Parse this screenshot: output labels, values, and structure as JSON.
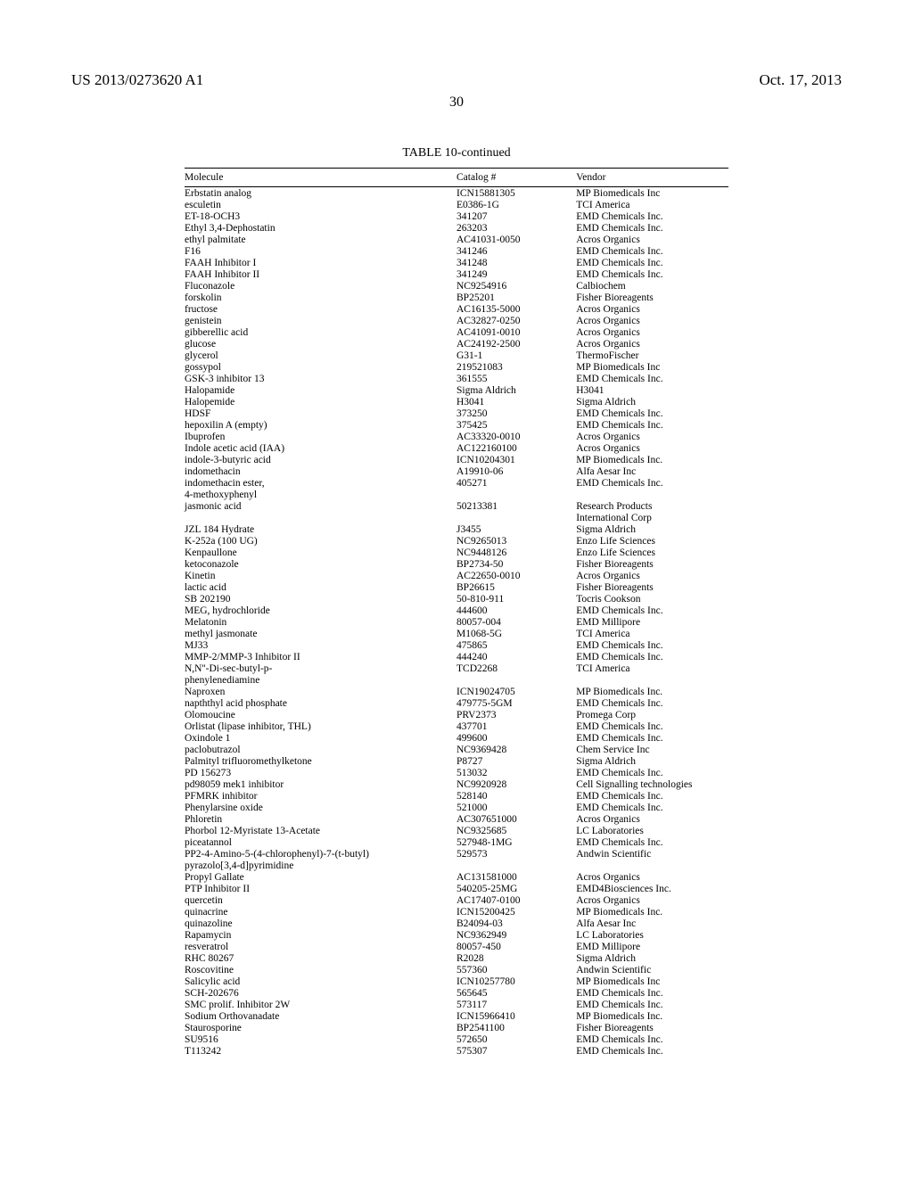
{
  "header": {
    "pub_number": "US 2013/0273620 A1",
    "pub_date": "Oct. 17, 2013"
  },
  "page_number": "30",
  "table": {
    "title": "TABLE 10-continued",
    "columns": [
      "Molecule",
      "Catalog #",
      "Vendor"
    ],
    "rows": [
      [
        "Erbstatin analog",
        "ICN15881305",
        "MP Biomedicals Inc"
      ],
      [
        "esculetin",
        "E0386-1G",
        "TCI America"
      ],
      [
        "ET-18-OCH3",
        "341207",
        "EMD Chemicals Inc."
      ],
      [
        "Ethyl 3,4-Dephostatin",
        "263203",
        "EMD Chemicals Inc."
      ],
      [
        "ethyl palmitate",
        "AC41031-0050",
        "Acros Organics"
      ],
      [
        "F16",
        "341246",
        "EMD Chemicals Inc."
      ],
      [
        "FAAH Inhibitor I",
        "341248",
        "EMD Chemicals Inc."
      ],
      [
        "FAAH Inhibitor II",
        "341249",
        "EMD Chemicals Inc."
      ],
      [
        "Fluconazole",
        "NC9254916",
        "Calbiochem"
      ],
      [
        "forskolin",
        "BP25201",
        "Fisher Bioreagents"
      ],
      [
        "fructose",
        "AC16135-5000",
        "Acros Organics"
      ],
      [
        "genistein",
        "AC32827-0250",
        "Acros Organics"
      ],
      [
        "gibberellic acid",
        "AC41091-0010",
        "Acros Organics"
      ],
      [
        "glucose",
        "AC24192-2500",
        "Acros Organics"
      ],
      [
        "glycerol",
        "G31-1",
        "ThermoFischer"
      ],
      [
        "gossypol",
        "219521083",
        "MP Biomedicals Inc"
      ],
      [
        "GSK-3 inhibitor 13",
        "361555",
        "EMD Chemicals Inc."
      ],
      [
        "Halopamide",
        "Sigma Aldrich",
        "H3041"
      ],
      [
        "Halopemide",
        "H3041",
        "Sigma Aldrich"
      ],
      [
        "HDSF",
        "373250",
        "EMD Chemicals Inc."
      ],
      [
        "hepoxilin A (empty)",
        "375425",
        "EMD Chemicals Inc."
      ],
      [
        "Ibuprofen",
        "AC33320-0010",
        "Acros Organics"
      ],
      [
        "Indole acetic acid (IAA)",
        "AC122160100",
        "Acros Organics"
      ],
      [
        "indole-3-butyric acid",
        "ICN10204301",
        "MP Biomedicals Inc."
      ],
      [
        "indomethacin",
        "A19910-06",
        "Alfa Aesar Inc"
      ],
      [
        "indomethacin ester,",
        "405271",
        "EMD Chemicals Inc."
      ],
      [
        "4-methoxyphenyl",
        "",
        ""
      ],
      [
        "jasmonic acid",
        "50213381",
        "Research Products"
      ],
      [
        "",
        "",
        "International Corp"
      ],
      [
        "JZL 184 Hydrate",
        "J3455",
        "Sigma Aldrich"
      ],
      [
        "K-252a (100 UG)",
        "NC9265013",
        "Enzo Life Sciences"
      ],
      [
        "Kenpaullone",
        "NC9448126",
        "Enzo Life Sciences"
      ],
      [
        "ketoconazole",
        "BP2734-50",
        "Fisher Bioreagents"
      ],
      [
        "Kinetin",
        "AC22650-0010",
        "Acros Organics"
      ],
      [
        "lactic acid",
        "BP26615",
        "Fisher Bioreagents"
      ],
      [
        "SB 202190",
        "50-810-911",
        "Tocris Cookson"
      ],
      [
        "MEG, hydrochloride",
        "444600",
        "EMD Chemicals Inc."
      ],
      [
        "Melatonin",
        "80057-004",
        "EMD Millipore"
      ],
      [
        "methyl jasmonate",
        "M1068-5G",
        "TCI America"
      ],
      [
        "MJ33",
        "475865",
        "EMD Chemicals Inc."
      ],
      [
        "MMP-2/MMP-3 Inhibitor II",
        "444240",
        "EMD Chemicals Inc."
      ],
      [
        "N,N''-Di-sec-butyl-p-",
        "TCD2268",
        "TCI America"
      ],
      [
        "phenylenediamine",
        "",
        ""
      ],
      [
        "Naproxen",
        "ICN19024705",
        "MP Biomedicals Inc."
      ],
      [
        "napththyl acid phosphate",
        "479775-5GM",
        "EMD Chemicals Inc."
      ],
      [
        "Olomoucine",
        "PRV2373",
        "Promega Corp"
      ],
      [
        "Orlistat (lipase inhibitor, THL)",
        "437701",
        "EMD Chemicals Inc."
      ],
      [
        "Oxindole 1",
        "499600",
        "EMD Chemicals Inc."
      ],
      [
        "paclobutrazol",
        "NC9369428",
        "Chem Service Inc"
      ],
      [
        "Palmityl trifluoromethylketone",
        "P8727",
        "Sigma Aldrich"
      ],
      [
        "PD 156273",
        "513032",
        "EMD Chemicals Inc."
      ],
      [
        "pd98059 mek1 inhibitor",
        "NC9920928",
        "Cell Signalling technologies"
      ],
      [
        "PFMRK inhibitor",
        "528140",
        "EMD Chemicals Inc."
      ],
      [
        "Phenylarsine oxide",
        "521000",
        "EMD Chemicals Inc."
      ],
      [
        "Phloretin",
        "AC307651000",
        "Acros Organics"
      ],
      [
        "Phorbol 12-Myristate 13-Acetate",
        "NC9325685",
        "LC Laboratories"
      ],
      [
        "piceatannol",
        "527948-1MG",
        "EMD Chemicals Inc."
      ],
      [
        "PP2-4-Amino-5-(4-chlorophenyl)-7-(t-butyl)",
        "529573",
        "Andwin Scientific"
      ],
      [
        "pyrazolo[3,4-d]pyrimidine",
        "",
        ""
      ],
      [
        "Propyl Gallate",
        "AC131581000",
        "Acros Organics"
      ],
      [
        "PTP Inhibitor II",
        "540205-25MG",
        "EMD4Biosciences Inc."
      ],
      [
        "quercetin",
        "AC17407-0100",
        "Acros Organics"
      ],
      [
        "quinacrine",
        "ICN15200425",
        "MP Biomedicals Inc."
      ],
      [
        "quinazoline",
        "B24094-03",
        "Alfa Aesar Inc"
      ],
      [
        "Rapamycin",
        "NC9362949",
        "LC Laboratories"
      ],
      [
        "resveratrol",
        "80057-450",
        "EMD Millipore"
      ],
      [
        "RHC 80267",
        "R2028",
        "Sigma Aldrich"
      ],
      [
        "Roscovitine",
        "557360",
        "Andwin Scientific"
      ],
      [
        "Salicylic acid",
        "ICN10257780",
        "MP Biomedicals Inc"
      ],
      [
        "SCH-202676",
        "565645",
        "EMD Chemicals Inc."
      ],
      [
        "SMC prolif. Inhibitor 2W",
        "573117",
        "EMD Chemicals Inc."
      ],
      [
        "Sodium Orthovanadate",
        "ICN15966410",
        "MP Biomedicals Inc."
      ],
      [
        "Staurosporine",
        "BP2541100",
        "Fisher Bioreagents"
      ],
      [
        "SU9516",
        "572650",
        "EMD Chemicals Inc."
      ],
      [
        "T113242",
        "575307",
        "EMD Chemicals Inc."
      ]
    ]
  }
}
